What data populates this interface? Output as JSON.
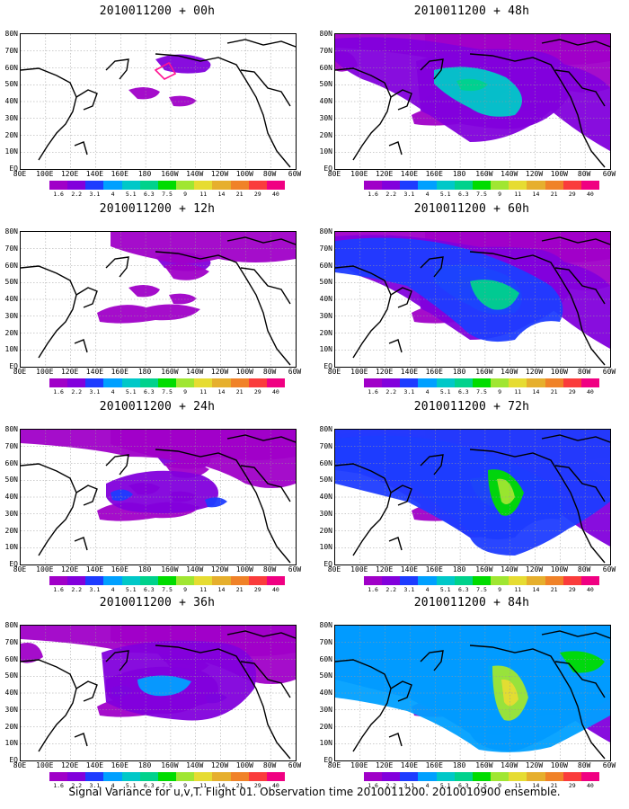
{
  "colorbar": {
    "labels": [
      "1.6",
      "2.2",
      "3.1",
      "4",
      "5.1",
      "6.3",
      "7.5",
      "9",
      "11",
      "14",
      "21",
      "29",
      "40"
    ],
    "colors": [
      "#a000c8",
      "#8200dc",
      "#1e3cff",
      "#00a0ff",
      "#00c8c8",
      "#00d28c",
      "#00dc00",
      "#a0e632",
      "#e6dc32",
      "#e6af2d",
      "#f08228",
      "#fa3c3c",
      "#f00082"
    ]
  },
  "axes": {
    "lat_labels": [
      "80N",
      "70N",
      "60N",
      "50N",
      "40N",
      "30N",
      "20N",
      "10N",
      "EQ"
    ],
    "lon_labels": [
      "80E",
      "100E",
      "120E",
      "140E",
      "160E",
      "180",
      "160W",
      "140W",
      "120W",
      "100W",
      "80W",
      "60W"
    ]
  },
  "panels": [
    {
      "title": "2010011200 + 00h",
      "intensity": 0
    },
    {
      "title": "2010011200 + 12h",
      "intensity": 1
    },
    {
      "title": "2010011200 + 24h",
      "intensity": 2
    },
    {
      "title": "2010011200 + 36h",
      "intensity": 3
    },
    {
      "title": "2010011200 + 48h",
      "intensity": 4
    },
    {
      "title": "2010011200 + 60h",
      "intensity": 5
    },
    {
      "title": "2010011200 + 72h",
      "intensity": 6
    },
    {
      "title": "2010011200 + 84h",
      "intensity": 7
    }
  ],
  "footer": "Signal Variance for u,v,T. Flight 01. Observation time 2010011200. 2010010900 ensemble."
}
